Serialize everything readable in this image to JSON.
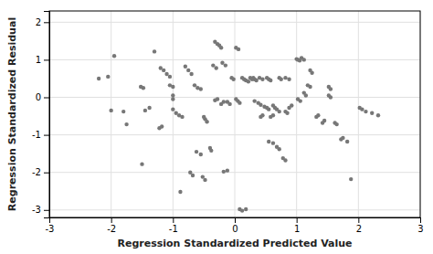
{
  "chart_data": {
    "type": "scatter",
    "xlabel": "Regression Standardized Predicted Value",
    "ylabel": "Regression Standardized Residual",
    "xlim": [
      -3,
      3
    ],
    "ylim": [
      -3.2,
      2.3
    ],
    "xticks": [
      -3,
      -2,
      -1,
      0,
      1,
      2,
      3
    ],
    "yticks": [
      -3,
      -2,
      -1,
      0,
      1,
      2
    ],
    "grid": true,
    "color": "#777777",
    "x": [
      -2.05,
      -2.2,
      -2.0,
      -1.95,
      -1.8,
      -1.75,
      -1.5,
      -1.3,
      -1.2,
      -1.15,
      -1.1,
      -1.05,
      -1.05,
      -1.0,
      -1.0,
      -1.0,
      -1.0,
      -0.95,
      -0.9,
      -0.85,
      -0.8,
      -0.75,
      -0.7,
      -0.65,
      -0.6,
      -0.55,
      -0.5,
      -0.48,
      -0.45,
      -0.4,
      -0.38,
      -0.32,
      -0.28,
      -0.25,
      -0.22,
      -0.2,
      -0.15,
      -0.12,
      -0.08,
      -0.52,
      -0.48,
      -0.72,
      -0.68,
      -0.62,
      -0.55,
      0.02,
      0.05,
      0.08,
      0.02,
      0.06,
      -0.18,
      -0.12,
      0.08,
      0.12,
      0.18,
      0.3,
      0.32,
      0.35,
      0.4,
      0.45,
      0.52,
      0.55,
      0.58,
      0.62,
      0.65,
      0.68,
      0.72,
      0.72,
      0.75,
      0.82,
      0.85,
      0.88,
      0.92,
      0.52,
      0.55,
      0.58,
      0.62,
      0.68,
      0.72,
      0.78,
      0.82,
      1.0,
      1.02,
      1.05,
      1.08,
      1.12,
      1.02,
      1.06,
      1.12,
      1.15,
      1.22,
      1.25,
      1.32,
      1.35,
      1.42,
      1.45,
      1.52,
      1.55,
      1.62,
      1.65,
      1.72,
      1.75,
      2.02,
      2.06,
      2.12,
      2.22,
      2.32,
      -0.32,
      -0.28,
      -0.22,
      -0.18,
      0.12,
      0.15,
      0.18,
      0.22,
      0.25,
      0.28,
      0.32,
      0.38,
      0.42,
      0.48,
      -1.52,
      -1.48,
      -1.22,
      -1.18,
      1.82,
      1.88,
      -0.88,
      0.55,
      0.62,
      1.52,
      1.55,
      -0.35,
      -0.3,
      0.82,
      0.88,
      -1.45,
      -1.38,
      1.18,
      1.22,
      -0.05,
      -0.02,
      0.42,
      0.45
    ],
    "values": [
      0.55,
      0.5,
      -0.35,
      1.1,
      -0.38,
      -0.72,
      -1.78,
      1.22,
      0.78,
      0.72,
      0.62,
      0.55,
      0.32,
      0.28,
      0.05,
      -0.05,
      -0.32,
      -0.42,
      -0.48,
      -0.52,
      0.82,
      0.72,
      0.62,
      0.32,
      0.25,
      0.22,
      -0.52,
      -0.58,
      -0.65,
      -1.35,
      -1.42,
      1.48,
      1.42,
      1.38,
      1.32,
      0.92,
      0.85,
      -0.12,
      -0.18,
      -2.12,
      -2.2,
      -2.0,
      -2.08,
      -1.45,
      -1.52,
      -0.05,
      -0.1,
      -0.15,
      1.32,
      1.28,
      -1.98,
      -1.95,
      -2.98,
      -3.02,
      -2.98,
      0.52,
      0.48,
      0.45,
      0.52,
      0.48,
      0.52,
      0.48,
      0.45,
      -0.22,
      -0.28,
      -0.32,
      -0.38,
      0.52,
      0.48,
      -0.38,
      -0.42,
      -0.28,
      -0.22,
      -0.28,
      -0.32,
      -0.52,
      -0.48,
      -1.32,
      -1.38,
      -1.62,
      -1.68,
      1.02,
      1.0,
      0.98,
      1.05,
      1.0,
      -0.05,
      -0.1,
      0.12,
      0.05,
      0.72,
      0.65,
      -0.52,
      -0.48,
      -0.68,
      -0.62,
      0.28,
      0.22,
      -0.68,
      -0.72,
      -1.12,
      -1.08,
      -0.28,
      -0.32,
      -0.38,
      -0.42,
      -0.48,
      -0.08,
      -0.05,
      -0.18,
      -0.12,
      0.52,
      0.48,
      0.45,
      0.42,
      0.52,
      0.48,
      -0.1,
      -0.15,
      -0.2,
      -0.25,
      0.28,
      0.25,
      -0.82,
      -0.78,
      -1.18,
      -2.18,
      -2.52,
      -1.18,
      -1.22,
      0.05,
      0.0,
      0.85,
      0.78,
      0.52,
      0.48,
      -0.35,
      -0.28,
      0.32,
      0.28,
      0.52,
      0.48,
      -0.52,
      -0.48
    ]
  }
}
